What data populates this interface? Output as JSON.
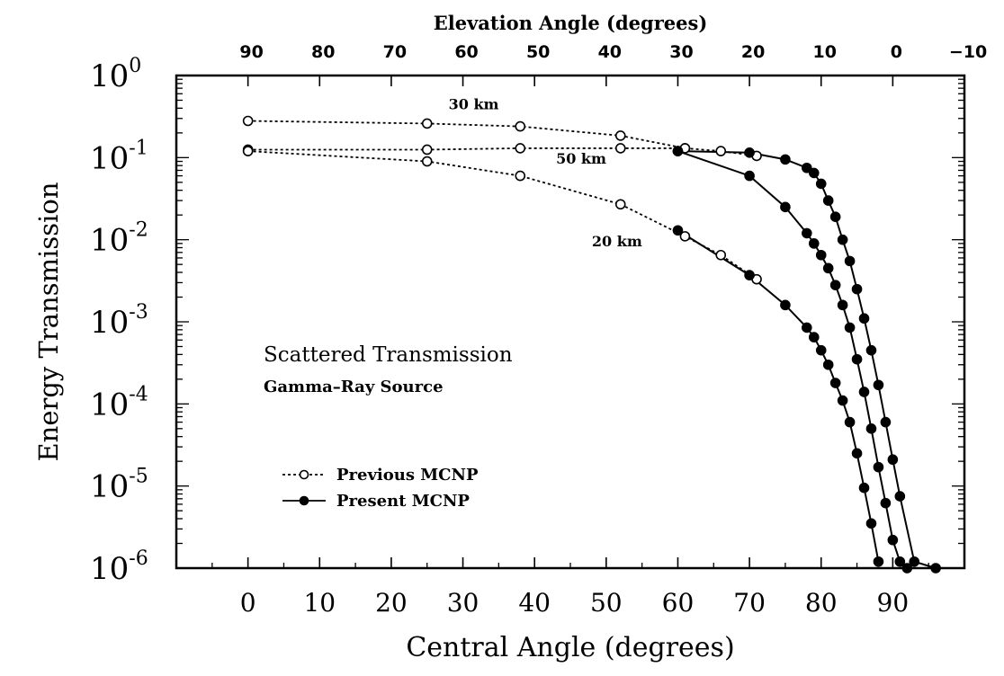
{
  "chart_data": {
    "type": "line",
    "xlabel": "Central Angle (degrees)",
    "ylabel": "Energy Transmission",
    "top_axis_label": "Elevation Angle (degrees)",
    "xlim": [
      -10,
      100
    ],
    "ylim": [
      1e-06,
      1
    ],
    "yscale": "log",
    "grid": false,
    "x_ticks": [
      "0",
      "10",
      "20",
      "30",
      "40",
      "50",
      "60",
      "70",
      "80",
      "90"
    ],
    "y_ticks": [
      {
        "base": "10",
        "exp": "0"
      },
      {
        "base": "10",
        "exp": "-1"
      },
      {
        "base": "10",
        "exp": "-2"
      },
      {
        "base": "10",
        "exp": "-3"
      },
      {
        "base": "10",
        "exp": "-4"
      },
      {
        "base": "10",
        "exp": "-5"
      },
      {
        "base": "10",
        "exp": "-6"
      }
    ],
    "top_ticks": [
      "90",
      "80",
      "70",
      "60",
      "50",
      "40",
      "30",
      "20",
      "10",
      "0",
      "−10"
    ],
    "annotations": {
      "title": "Scattered Transmission",
      "subtitle": "Gamma–Ray Source"
    },
    "legend": {
      "position": "lower-left",
      "previous": "Previous MCNP",
      "present": "Present MCNP"
    },
    "series": [
      {
        "name": "Previous MCNP",
        "curve": "30 km",
        "marker": "open-circle",
        "line": "dotted",
        "x": [
          0,
          25,
          38,
          52,
          61
        ],
        "y": [
          0.28,
          0.26,
          0.24,
          0.185,
          0.13
        ]
      },
      {
        "name": "Previous MCNP",
        "curve": "50 km",
        "marker": "open-circle",
        "line": "dotted",
        "x": [
          0,
          25,
          38,
          52,
          61,
          66,
          71
        ],
        "y": [
          0.125,
          0.125,
          0.13,
          0.13,
          0.13,
          0.12,
          0.105
        ]
      },
      {
        "name": "Previous MCNP",
        "curve": "20 km",
        "marker": "open-circle",
        "line": "dotted",
        "x": [
          0,
          25,
          38,
          52,
          61,
          66,
          71
        ],
        "y": [
          0.12,
          0.09,
          0.06,
          0.027,
          0.011,
          0.0065,
          0.0033
        ]
      },
      {
        "name": "Present MCNP",
        "curve": "50 km",
        "marker": "filled-circle",
        "line": "solid",
        "x": [
          60,
          70,
          75,
          78,
          79,
          80,
          81,
          82,
          83,
          84,
          85,
          86,
          87,
          88,
          89,
          90,
          91,
          93,
          96
        ],
        "y": [
          0.12,
          0.115,
          0.095,
          0.075,
          0.065,
          0.048,
          0.03,
          0.019,
          0.01,
          0.0055,
          0.0025,
          0.0011,
          0.00045,
          0.00017,
          6e-05,
          2.1e-05,
          7.5e-06,
          1.2e-06,
          1e-06
        ]
      },
      {
        "name": "Present MCNP",
        "curve": "30 km",
        "marker": "filled-circle",
        "line": "solid",
        "x": [
          60,
          70,
          75,
          78,
          79,
          80,
          81,
          82,
          83,
          84,
          85,
          86,
          87,
          88,
          89,
          90,
          91,
          92
        ],
        "y": [
          0.12,
          0.06,
          0.025,
          0.012,
          0.009,
          0.0065,
          0.0045,
          0.0028,
          0.0016,
          0.00085,
          0.00035,
          0.00014,
          5e-05,
          1.7e-05,
          6.2e-06,
          2.2e-06,
          1.2e-06,
          1e-06
        ]
      },
      {
        "name": "Present MCNP",
        "curve": "20 km",
        "marker": "filled-circle",
        "line": "solid",
        "x": [
          60,
          70,
          75,
          78,
          79,
          80,
          81,
          82,
          83,
          84,
          85,
          86,
          87,
          88
        ],
        "y": [
          0.013,
          0.0037,
          0.0016,
          0.00085,
          0.00065,
          0.00045,
          0.0003,
          0.00018,
          0.00011,
          6e-05,
          2.5e-05,
          9.5e-06,
          3.5e-06,
          1.2e-06
        ]
      }
    ],
    "curve_labels": [
      {
        "text": "30 km",
        "x": 28,
        "y": 0.39
      },
      {
        "text": "50 km",
        "x": 43,
        "y": 0.085
      },
      {
        "text": "20 km",
        "x": 48,
        "y": 0.0083
      }
    ]
  }
}
